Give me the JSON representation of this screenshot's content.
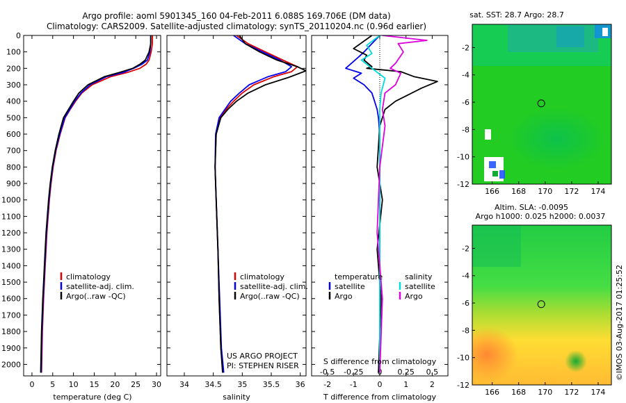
{
  "title": {
    "line1": "Argo profile: aoml 5901345_160 04-Feb-2011 6.088S 169.706E (DM data)",
    "line2": "Climatology: CARS2009. Satellite-adjusted climatology: synTS_20110204.nc (0.96d earlier)"
  },
  "credit": {
    "project": "US ARGO PROJECT",
    "pi": "PI: STEPHEN RISER",
    "watermark": "©IMOS 03-Aug-2017 01:25:52"
  },
  "colors": {
    "climatology": "#dd0000",
    "satellite": "#0000ee",
    "argo": "#000000",
    "salinity_satellite": "#00dddd",
    "salinity_argo": "#dd00dd"
  },
  "chart_data": [
    {
      "type": "line",
      "id": "temperature",
      "xlabel": "temperature (deg C)",
      "xlim": [
        -2,
        31
      ],
      "ylim": [
        0,
        2070
      ],
      "yinvert": true,
      "xticks": [
        0,
        5,
        10,
        15,
        20,
        25,
        30
      ],
      "yticks": [
        0,
        100,
        200,
        300,
        400,
        500,
        600,
        700,
        800,
        900,
        1000,
        1100,
        1200,
        1300,
        1400,
        1500,
        1600,
        1700,
        1800,
        1900,
        2000
      ],
      "legend": [
        "climatology",
        "satellite-adj. clim.",
        "Argo(..raw -QC)"
      ],
      "series": [
        {
          "name": "climatology",
          "color": "#dd0000",
          "x": [
            29.0,
            29.0,
            28.7,
            28.2,
            27.5,
            26.0,
            23.0,
            19.0,
            14.5,
            12.0,
            10.5,
            9.2,
            8.0,
            6.8,
            5.8,
            5.1,
            4.6,
            4.2,
            3.9,
            3.6,
            3.4,
            3.2,
            3.0,
            2.8,
            2.5,
            2.3
          ],
          "y": [
            0,
            50,
            100,
            150,
            175,
            200,
            225,
            250,
            300,
            350,
            400,
            450,
            500,
            600,
            700,
            800,
            900,
            1000,
            1100,
            1200,
            1300,
            1400,
            1500,
            1600,
            1800,
            2050
          ]
        },
        {
          "name": "satellite-adj. clim.",
          "color": "#0000ee",
          "x": [
            28.6,
            28.6,
            28.4,
            27.8,
            26.5,
            24.5,
            22.0,
            18.0,
            14.0,
            11.8,
            10.3,
            9.1,
            7.9,
            6.7,
            5.7,
            5.0,
            4.5,
            4.1,
            3.8,
            3.5,
            3.3,
            3.1,
            2.9,
            2.7,
            2.4,
            2.2
          ],
          "y": [
            0,
            50,
            100,
            150,
            175,
            200,
            225,
            250,
            300,
            350,
            400,
            450,
            500,
            600,
            700,
            800,
            900,
            1000,
            1100,
            1200,
            1300,
            1400,
            1500,
            1600,
            1800,
            2050
          ]
        },
        {
          "name": "Argo(..raw -QC)",
          "color": "#000000",
          "x": [
            28.6,
            28.6,
            28.2,
            27.3,
            26.0,
            24.3,
            21.0,
            17.5,
            13.5,
            11.3,
            10.0,
            8.8,
            7.6,
            6.5,
            5.6,
            4.9,
            4.4,
            4.0,
            3.7,
            3.4,
            3.2,
            3.0,
            2.8,
            2.6,
            2.3,
            2.1
          ],
          "y": [
            0,
            50,
            100,
            150,
            175,
            200,
            225,
            250,
            300,
            350,
            400,
            450,
            500,
            600,
            700,
            800,
            900,
            1000,
            1100,
            1200,
            1300,
            1400,
            1500,
            1600,
            1800,
            2050
          ]
        }
      ]
    },
    {
      "type": "line",
      "id": "salinity",
      "xlabel": "salinity",
      "xlim": [
        33.7,
        36.1
      ],
      "ylim": [
        0,
        2070
      ],
      "yinvert": true,
      "xticks": [
        34,
        34.5,
        35,
        35.5,
        36
      ],
      "legend": [
        "climatology",
        "satellite-adj. clim.",
        "Argo(..raw -QC)"
      ],
      "series": [
        {
          "name": "climatology",
          "color": "#dd0000",
          "x": [
            34.9,
            35.1,
            35.4,
            35.7,
            35.95,
            35.85,
            35.55,
            35.2,
            35.0,
            34.85,
            34.72,
            34.62,
            34.55,
            34.53,
            34.55,
            34.58,
            34.6,
            34.63,
            34.67
          ],
          "y": [
            0,
            50,
            100,
            150,
            190,
            220,
            250,
            300,
            350,
            400,
            450,
            500,
            600,
            800,
            1000,
            1300,
            1600,
            1900,
            2050
          ]
        },
        {
          "name": "satellite-adj. clim.",
          "color": "#0000ee",
          "x": [
            34.85,
            35.05,
            35.35,
            35.65,
            35.85,
            35.75,
            35.45,
            35.12,
            34.95,
            34.8,
            34.7,
            34.6,
            34.54,
            34.53,
            34.55,
            34.58,
            34.61,
            34.64,
            34.68
          ],
          "y": [
            0,
            50,
            100,
            150,
            190,
            220,
            250,
            300,
            350,
            400,
            450,
            500,
            600,
            800,
            1000,
            1300,
            1600,
            1900,
            2050
          ]
        },
        {
          "name": "Argo(..raw -QC)",
          "color": "#000000",
          "x": [
            34.95,
            35.05,
            35.3,
            35.6,
            35.95,
            36.1,
            35.8,
            35.4,
            35.1,
            34.9,
            34.75,
            34.63,
            34.55,
            34.53,
            34.55,
            34.58,
            34.6,
            34.63,
            34.66
          ],
          "y": [
            0,
            50,
            100,
            150,
            190,
            215,
            255,
            300,
            350,
            400,
            450,
            500,
            600,
            800,
            1000,
            1300,
            1600,
            1900,
            2050
          ]
        }
      ]
    },
    {
      "type": "line",
      "id": "differences",
      "xlabel_top": "S difference from climatology",
      "xlabel": "T difference from climatology",
      "xlim": [
        -2.6,
        2.6
      ],
      "ylim": [
        0,
        2070
      ],
      "yinvert": true,
      "xticks": [
        -2,
        -1,
        0,
        1,
        2
      ],
      "xticks_salinity": [
        -0.5,
        -0.25,
        0,
        0.25,
        0.5
      ],
      "legend_temperature_title": "temperature",
      "legend_salinity_title": "salinity",
      "legend_temperature": [
        "satellite",
        "Argo"
      ],
      "legend_salinity": [
        "satellite",
        "Argo"
      ],
      "series": [
        {
          "name": "satellite",
          "color": "#0000ee",
          "x": [
            0,
            -0.3,
            -0.6,
            -0.8,
            -1.3,
            -0.7,
            -1.0,
            -0.6,
            -0.3,
            -0.2,
            -0.1,
            -0.05,
            0,
            0,
            0,
            0
          ],
          "y": [
            0,
            50,
            100,
            130,
            200,
            230,
            260,
            300,
            350,
            400,
            450,
            500,
            600,
            1000,
            1500,
            2050
          ]
        },
        {
          "name": "Argo",
          "color": "#000000",
          "x": [
            -0.3,
            -1.0,
            -0.5,
            -0.6,
            -0.3,
            -0.5,
            0.8,
            1.3,
            2.2,
            1.6,
            0.6,
            0.2,
            0,
            -0.1,
            0.1,
            -0.1,
            0.05,
            -0.05
          ],
          "y": [
            0,
            80,
            120,
            150,
            190,
            200,
            220,
            250,
            280,
            320,
            400,
            450,
            550,
            800,
            1000,
            1300,
            1600,
            2050
          ]
        },
        {
          "name": "satellite",
          "color": "#00dddd",
          "x": [
            0,
            -0.5,
            -0.3,
            -0.7,
            -0.3,
            0.2,
            0.05,
            0,
            0,
            0
          ],
          "y": [
            0,
            60,
            110,
            150,
            200,
            260,
            350,
            450,
            1000,
            2050
          ]
        },
        {
          "name": "Argo",
          "color": "#dd00dd",
          "x": [
            0.1,
            1.8,
            0.7,
            0.9,
            0.6,
            0.4,
            0.8,
            0.6,
            0.2,
            0.1,
            0.2,
            0,
            -0.1,
            0.1,
            0
          ],
          "y": [
            0,
            30,
            50,
            100,
            170,
            200,
            230,
            300,
            350,
            450,
            550,
            800,
            1200,
            1600,
            2050
          ]
        }
      ]
    },
    {
      "type": "heatmap",
      "id": "sst-map",
      "title": "sat. SST: 28.7  Argo: 28.7",
      "xlim": [
        164.5,
        175
      ],
      "ylim": [
        -12,
        -0.3
      ],
      "xticks": [
        166,
        168,
        170,
        172,
        174
      ],
      "yticks": [
        -2,
        -4,
        -6,
        -8,
        -10,
        -12
      ],
      "marker": {
        "lon": 169.706,
        "lat": -6.088
      }
    },
    {
      "type": "heatmap",
      "id": "sla-map",
      "title": "Altim. SLA: -0.0095",
      "subtitle": "Argo h1000: 0.025 h2000: 0.0037",
      "xlim": [
        164.5,
        175
      ],
      "ylim": [
        -12,
        -0.3
      ],
      "xticks": [
        166,
        168,
        170,
        172,
        174
      ],
      "yticks": [
        -2,
        -4,
        -6,
        -8,
        -10,
        -12
      ],
      "marker": {
        "lon": 169.706,
        "lat": -6.088
      }
    }
  ]
}
